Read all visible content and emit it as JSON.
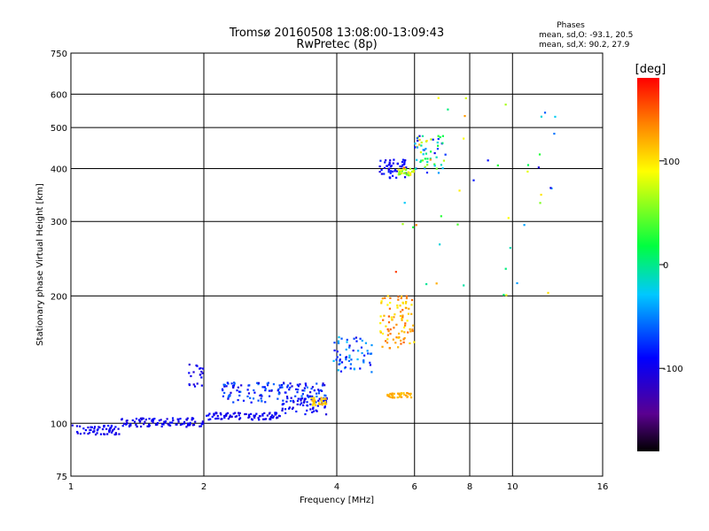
{
  "chart_data": {
    "type": "scatter",
    "title": "Tromsø 20160508 13:08:00-13:09:43",
    "subtitle": "RwPretec (8p)",
    "xlabel": "Frequency [MHz]",
    "ylabel": "Stationary phase Virtual Height [km]",
    "x_scale": "log",
    "y_scale": "log",
    "xlim": [
      1,
      16
    ],
    "ylim": [
      75,
      750
    ],
    "x_ticks": [
      1,
      2,
      4,
      6,
      8,
      10,
      16
    ],
    "x_tick_labels": [
      "1",
      "2",
      "4",
      "6",
      "8",
      "10",
      "16"
    ],
    "y_ticks": [
      75,
      100,
      200,
      300,
      400,
      500,
      600,
      750
    ],
    "y_tick_labels": [
      "75",
      "100",
      "200",
      "300",
      "400",
      "500",
      "600",
      "750"
    ],
    "grid": true,
    "phases_legend": {
      "title": "Phases",
      "line1": "mean, sd,O: -93.1, 20.5",
      "line2": "mean, sd,X:  90.2, 27.9"
    },
    "colorbar": {
      "label": "[deg]",
      "range": [
        -180,
        180
      ],
      "ticks": [
        100,
        0,
        -100
      ],
      "tick_labels": [
        "100",
        "0",
        "-100"
      ]
    },
    "clusters": [
      {
        "f": [
          1.0,
          1.3
        ],
        "h": [
          94,
          99
        ],
        "ph": [
          -110,
          -85
        ],
        "n": 55
      },
      {
        "f": [
          1.3,
          2.0
        ],
        "h": [
          98,
          103
        ],
        "ph": [
          -110,
          -85
        ],
        "n": 100
      },
      {
        "f": [
          2.0,
          3.0
        ],
        "h": [
          102,
          106
        ],
        "ph": [
          -110,
          -85
        ],
        "n": 90
      },
      {
        "f": [
          3.0,
          3.8
        ],
        "h": [
          105,
          115
        ],
        "ph": [
          -110,
          -80
        ],
        "n": 55
      },
      {
        "f": [
          2.2,
          3.8
        ],
        "h": [
          112,
          125
        ],
        "ph": [
          -110,
          -50
        ],
        "n": 140
      },
      {
        "f": [
          1.85,
          2.0
        ],
        "h": [
          122,
          138
        ],
        "ph": [
          -110,
          -90
        ],
        "n": 20
      },
      {
        "f": [
          3.5,
          3.8
        ],
        "h": [
          110,
          115
        ],
        "ph": [
          100,
          120
        ],
        "n": 30
      },
      {
        "f": [
          3.9,
          4.8
        ],
        "h": [
          132,
          160
        ],
        "ph": [
          -105,
          -30
        ],
        "n": 60
      },
      {
        "f": [
          5.0,
          6.0
        ],
        "h": [
          150,
          200
        ],
        "ph": [
          90,
          150
        ],
        "n": 90
      },
      {
        "f": [
          5.2,
          5.9
        ],
        "h": [
          115,
          118
        ],
        "ph": [
          110,
          130
        ],
        "n": 35
      },
      {
        "f": [
          5.0,
          5.8
        ],
        "h": [
          380,
          420
        ],
        "ph": [
          -110,
          -80
        ],
        "n": 50
      },
      {
        "f": [
          5.5,
          6.0
        ],
        "h": [
          385,
          400
        ],
        "ph": [
          40,
          110
        ],
        "n": 30
      },
      {
        "f": [
          6.0,
          7.0
        ],
        "h": [
          390,
          480
        ],
        "ph": [
          -110,
          120
        ],
        "n": 55
      },
      {
        "f": [
          5.0,
          12.5
        ],
        "h": [
          200,
          600
        ],
        "ph": [
          -110,
          160
        ],
        "n": 45
      }
    ]
  }
}
